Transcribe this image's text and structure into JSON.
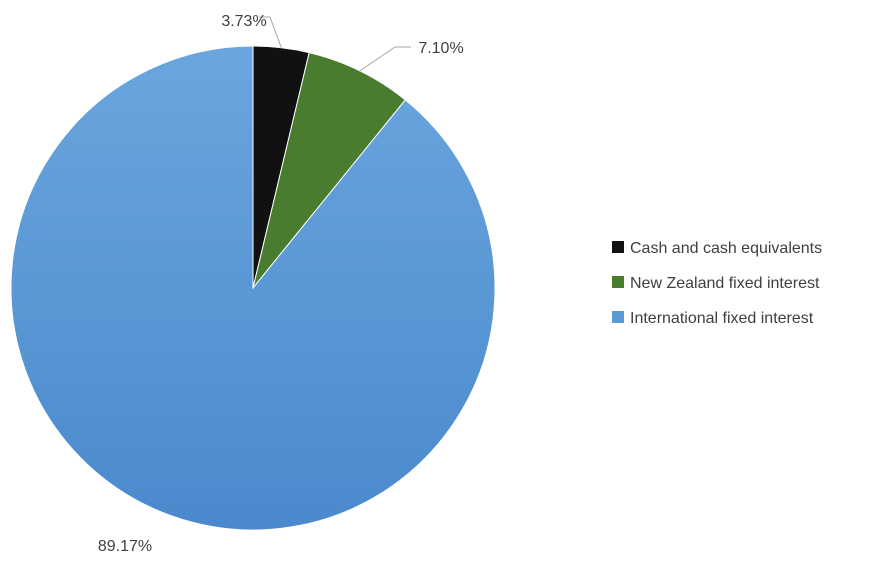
{
  "chart_data": {
    "type": "pie",
    "title": "",
    "series": [
      {
        "name": "Cash and cash equivalents",
        "value": 3.73,
        "label": "3.73%",
        "color": "#111111"
      },
      {
        "name": "New Zealand fixed interest",
        "value": 7.1,
        "label": "7.10%",
        "color": "#4a7c2f"
      },
      {
        "name": "International fixed interest",
        "value": 89.17,
        "label": "89.17%",
        "color": "#5b9bd5"
      }
    ],
    "start_angle": "12 o'clock",
    "direction": "clockwise",
    "legend_position": "right"
  }
}
